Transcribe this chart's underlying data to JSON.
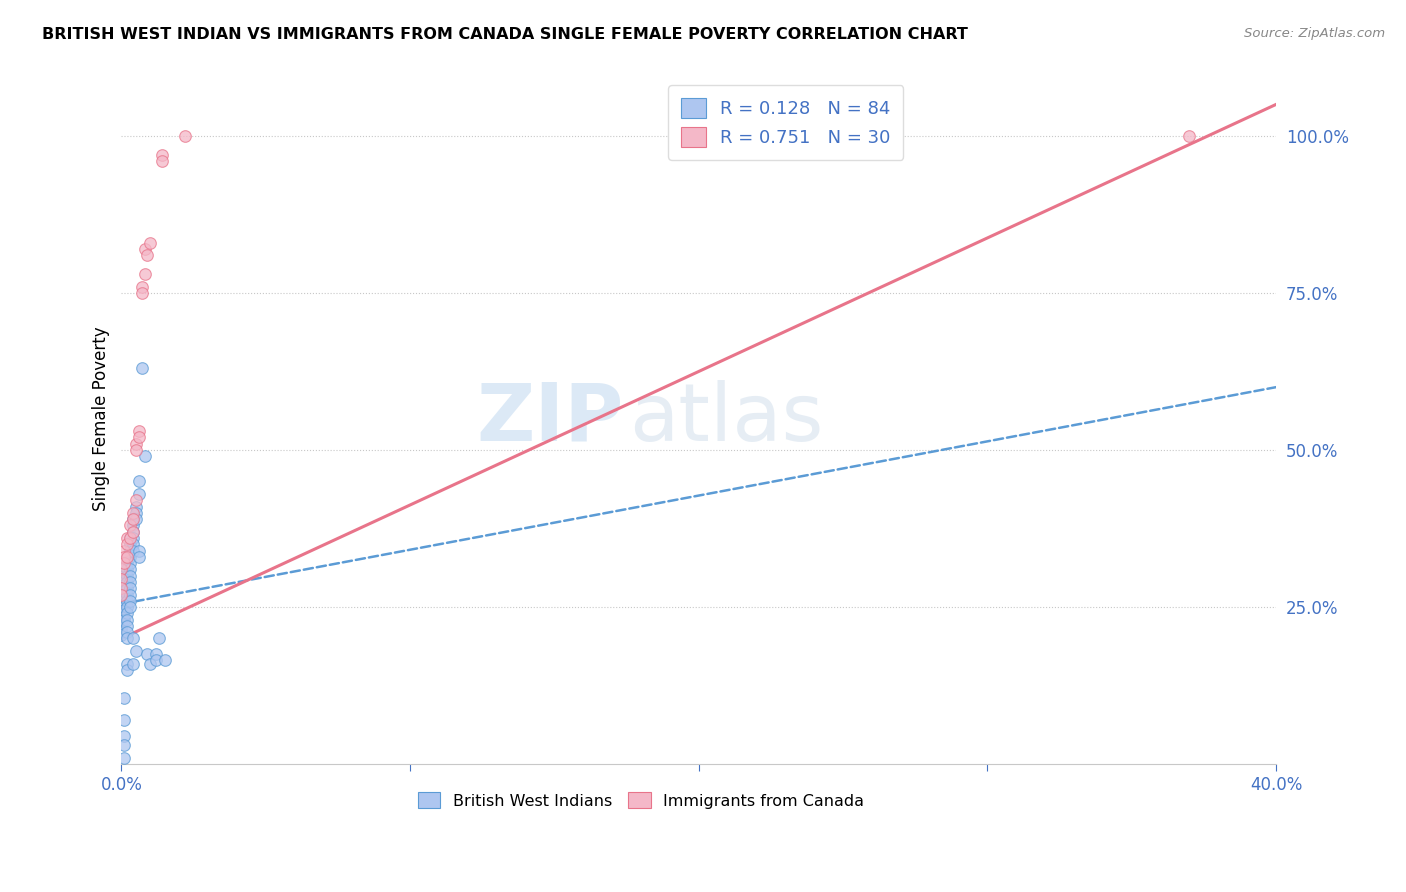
{
  "title": "BRITISH WEST INDIAN VS IMMIGRANTS FROM CANADA SINGLE FEMALE POVERTY CORRELATION CHART",
  "source": "Source: ZipAtlas.com",
  "ylabel": "Single Female Poverty",
  "watermark_zip": "ZIP",
  "watermark_atlas": "atlas",
  "blue_color": "#5b9bd5",
  "pink_color": "#e8748a",
  "blue_fill": "#aec6f0",
  "pink_fill": "#f4b8c8",
  "legend_text_color": "#4472c4",
  "axis_color": "#4472c4",
  "legend_r_blue": "R = 0.128   N = 84",
  "legend_r_pink": "R = 0.751   N = 30",
  "legend_cat_blue": "British West Indians",
  "legend_cat_pink": "Immigrants from Canada",
  "blue_scatter": [
    [
      0.0,
      0.28
    ],
    [
      0.0,
      0.265
    ],
    [
      0.0,
      0.26
    ],
    [
      0.0,
      0.255
    ],
    [
      0.0,
      0.25
    ],
    [
      0.0,
      0.245
    ],
    [
      0.0,
      0.24
    ],
    [
      0.0,
      0.235
    ],
    [
      0.0,
      0.23
    ],
    [
      0.0,
      0.225
    ],
    [
      0.0,
      0.22
    ],
    [
      0.0,
      0.215
    ],
    [
      0.0,
      0.21
    ],
    [
      0.0,
      0.205
    ],
    [
      0.001,
      0.3
    ],
    [
      0.001,
      0.295
    ],
    [
      0.001,
      0.29
    ],
    [
      0.001,
      0.285
    ],
    [
      0.001,
      0.275
    ],
    [
      0.001,
      0.27
    ],
    [
      0.001,
      0.265
    ],
    [
      0.001,
      0.26
    ],
    [
      0.001,
      0.255
    ],
    [
      0.001,
      0.25
    ],
    [
      0.001,
      0.245
    ],
    [
      0.001,
      0.235
    ],
    [
      0.001,
      0.23
    ],
    [
      0.001,
      0.105
    ],
    [
      0.001,
      0.07
    ],
    [
      0.001,
      0.045
    ],
    [
      0.001,
      0.03
    ],
    [
      0.001,
      0.01
    ],
    [
      0.002,
      0.33
    ],
    [
      0.002,
      0.32
    ],
    [
      0.002,
      0.31
    ],
    [
      0.002,
      0.3
    ],
    [
      0.002,
      0.29
    ],
    [
      0.002,
      0.28
    ],
    [
      0.002,
      0.27
    ],
    [
      0.002,
      0.26
    ],
    [
      0.002,
      0.25
    ],
    [
      0.002,
      0.24
    ],
    [
      0.002,
      0.23
    ],
    [
      0.002,
      0.22
    ],
    [
      0.002,
      0.21
    ],
    [
      0.002,
      0.2
    ],
    [
      0.002,
      0.16
    ],
    [
      0.002,
      0.15
    ],
    [
      0.003,
      0.36
    ],
    [
      0.003,
      0.35
    ],
    [
      0.003,
      0.34
    ],
    [
      0.003,
      0.33
    ],
    [
      0.003,
      0.32
    ],
    [
      0.003,
      0.31
    ],
    [
      0.003,
      0.3
    ],
    [
      0.003,
      0.29
    ],
    [
      0.003,
      0.28
    ],
    [
      0.003,
      0.27
    ],
    [
      0.003,
      0.26
    ],
    [
      0.003,
      0.25
    ],
    [
      0.004,
      0.39
    ],
    [
      0.004,
      0.38
    ],
    [
      0.004,
      0.37
    ],
    [
      0.004,
      0.36
    ],
    [
      0.004,
      0.35
    ],
    [
      0.004,
      0.34
    ],
    [
      0.004,
      0.2
    ],
    [
      0.004,
      0.16
    ],
    [
      0.005,
      0.41
    ],
    [
      0.005,
      0.4
    ],
    [
      0.005,
      0.39
    ],
    [
      0.005,
      0.18
    ],
    [
      0.006,
      0.45
    ],
    [
      0.006,
      0.43
    ],
    [
      0.006,
      0.34
    ],
    [
      0.006,
      0.33
    ],
    [
      0.007,
      0.63
    ],
    [
      0.008,
      0.49
    ],
    [
      0.009,
      0.175
    ],
    [
      0.01,
      0.16
    ],
    [
      0.012,
      0.175
    ],
    [
      0.012,
      0.165
    ],
    [
      0.013,
      0.2
    ],
    [
      0.015,
      0.165
    ]
  ],
  "pink_scatter": [
    [
      0.0,
      0.31
    ],
    [
      0.0,
      0.295
    ],
    [
      0.0,
      0.28
    ],
    [
      0.0,
      0.27
    ],
    [
      0.001,
      0.34
    ],
    [
      0.001,
      0.33
    ],
    [
      0.001,
      0.32
    ],
    [
      0.002,
      0.36
    ],
    [
      0.002,
      0.35
    ],
    [
      0.002,
      0.33
    ],
    [
      0.003,
      0.38
    ],
    [
      0.003,
      0.36
    ],
    [
      0.004,
      0.4
    ],
    [
      0.004,
      0.39
    ],
    [
      0.004,
      0.37
    ],
    [
      0.005,
      0.42
    ],
    [
      0.005,
      0.51
    ],
    [
      0.005,
      0.5
    ],
    [
      0.006,
      0.53
    ],
    [
      0.006,
      0.52
    ],
    [
      0.007,
      0.76
    ],
    [
      0.007,
      0.75
    ],
    [
      0.008,
      0.78
    ],
    [
      0.008,
      0.82
    ],
    [
      0.009,
      0.81
    ],
    [
      0.01,
      0.83
    ],
    [
      0.014,
      0.97
    ],
    [
      0.014,
      0.96
    ],
    [
      0.022,
      1.0
    ],
    [
      0.37,
      1.0
    ]
  ],
  "xlim": [
    0.0,
    0.4
  ],
  "ylim": [
    0.0,
    1.1
  ],
  "blue_line": {
    "x0": 0.0,
    "y0": 0.255,
    "x1": 0.4,
    "y1": 0.6
  },
  "pink_line": {
    "x0": 0.0,
    "y0": 0.2,
    "x1": 0.4,
    "y1": 1.05
  },
  "xticks": [
    0.0,
    0.1,
    0.2,
    0.3,
    0.4
  ],
  "yticks": [
    0.25,
    0.5,
    0.75,
    1.0
  ],
  "ytick_labels": [
    "25.0%",
    "50.0%",
    "75.0%",
    "100.0%"
  ]
}
